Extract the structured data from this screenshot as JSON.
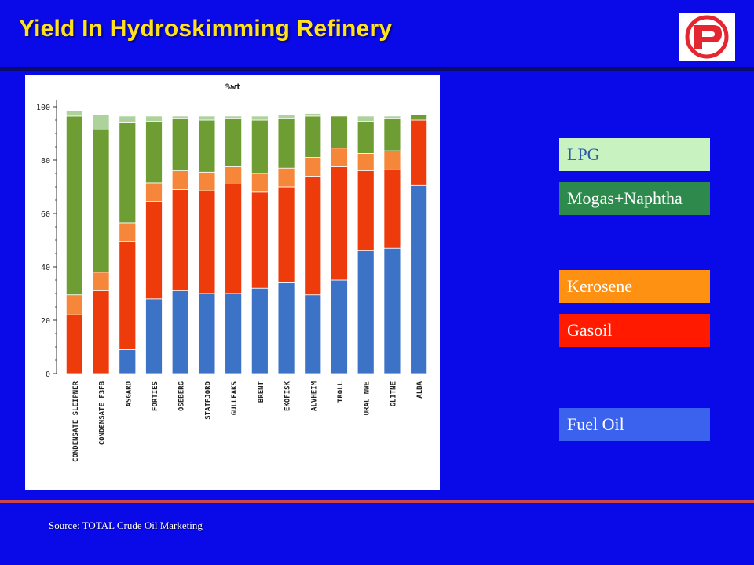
{
  "slide": {
    "title": "Yield In Hydroskimming Refinery",
    "source": "Source: TOTAL Crude Oil Marketing"
  },
  "logo": {
    "name": "company-p-logo",
    "ring_color": "#e3262f",
    "letter": "P"
  },
  "legend": [
    {
      "label": "LPG",
      "color": "#c8f2c0"
    },
    {
      "label": "Mogas+Naphtha",
      "color": "#2e8a4c"
    },
    {
      "label": "Kerosene",
      "color": "#ff9112"
    },
    {
      "label": "Gasoil",
      "color": "#ff1a00"
    },
    {
      "label": "Fuel Oil",
      "color": "#3a62ee"
    }
  ],
  "colors": {
    "background": "#0a0ae8",
    "title": "#ffe21a",
    "fuel_oil_bar": "#3d73c6",
    "gasoil_bar": "#ee3b0c",
    "kerosene_bar": "#f6873a",
    "mogas_naphtha_bar": "#6e9d33",
    "lpg_bar": "#aed29b"
  },
  "chart_data": {
    "type": "bar",
    "stacked": true,
    "title": "%wt",
    "ylim": [
      0,
      100
    ],
    "yticks": [
      0,
      20,
      40,
      60,
      80,
      100
    ],
    "categories": [
      "CONDENSATE SLEIPNER",
      "CONDENSATE F3FB",
      "ASGARD",
      "FORTIES",
      "OSEBERG",
      "STATFJORD",
      "GULLFAKS",
      "BRENT",
      "EKOFISK",
      "ALVHEIM",
      "TROLL",
      "URAL NWE",
      "GLITNE",
      "ALBA"
    ],
    "series": [
      {
        "key": "fuel_oil",
        "values": [
          0,
          0,
          9,
          28,
          31,
          30,
          30,
          32,
          34,
          29.5,
          35,
          46,
          47,
          70.5
        ]
      },
      {
        "key": "gasoil",
        "values": [
          22,
          31,
          40.5,
          36.5,
          38,
          38.5,
          41,
          36,
          36,
          44.5,
          42.5,
          30,
          29.5,
          24.5
        ]
      },
      {
        "key": "kerosene",
        "values": [
          7.5,
          7,
          7,
          7,
          7,
          7,
          6.5,
          7,
          7,
          7,
          7,
          6.5,
          7,
          0
        ]
      },
      {
        "key": "mogas_naphtha",
        "values": [
          67,
          53.5,
          37.5,
          23,
          19.5,
          19.5,
          18,
          20,
          18.5,
          15.5,
          12,
          12,
          12,
          2
        ]
      },
      {
        "key": "lpg",
        "values": [
          2,
          5.5,
          2.5,
          2,
          1,
          1.5,
          1,
          1.5,
          1.5,
          1,
          0,
          2,
          1,
          0
        ]
      }
    ]
  }
}
